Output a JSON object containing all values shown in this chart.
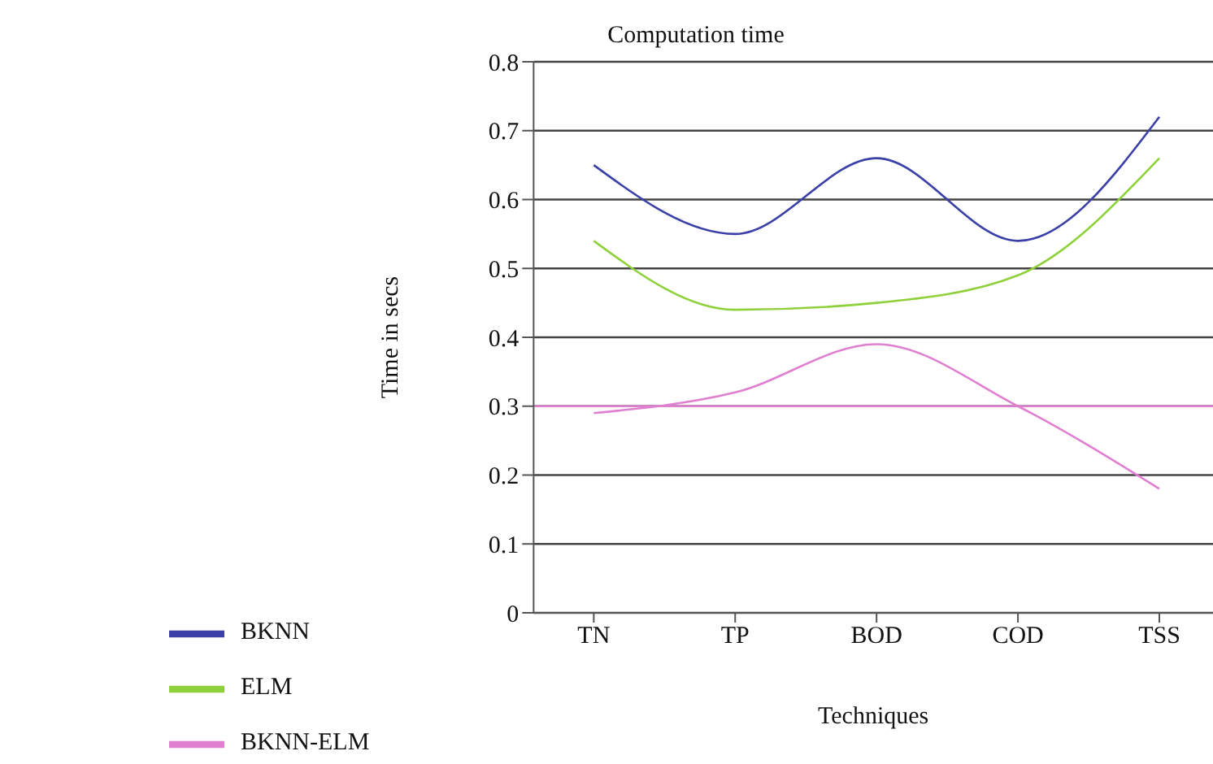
{
  "chart_data": {
    "type": "line",
    "title": "Computation time",
    "xlabel": "Techniques",
    "ylabel": "Time in secs",
    "categories": [
      "TN",
      "TP",
      "BOD",
      "COD",
      "TSS"
    ],
    "series": [
      {
        "name": "BKNN",
        "color": "#3b40a8",
        "values": [
          0.65,
          0.55,
          0.66,
          0.54,
          0.72
        ]
      },
      {
        "name": "ELM",
        "color": "#8fd13a",
        "values": [
          0.54,
          0.44,
          0.45,
          0.49,
          0.66
        ]
      },
      {
        "name": "BKNN-ELM",
        "color": "#e07fd0",
        "values": [
          0.29,
          0.32,
          0.39,
          0.3,
          0.18
        ]
      }
    ],
    "ylim": [
      0,
      0.8
    ],
    "yticks": [
      0,
      0.1,
      0.2,
      0.3,
      0.4,
      0.5,
      0.6,
      0.7,
      0.8
    ],
    "ref_lines": [
      {
        "axis": "y",
        "value": 0.3,
        "color": "#e07fd0"
      }
    ],
    "grid": "y",
    "legend": "bottom left",
    "marker": "none",
    "line_style": "solid"
  }
}
